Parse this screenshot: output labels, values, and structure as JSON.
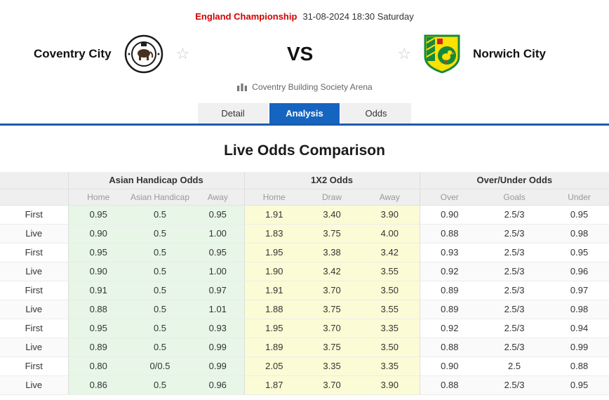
{
  "header": {
    "league": "England Championship",
    "datetime": "31-08-2024 18:30 Saturday",
    "home_team": "Coventry City",
    "away_team": "Norwich City",
    "vs": "VS",
    "venue": "Coventry Building Society Arena"
  },
  "icons": {
    "favorite_star": "☆",
    "home_logo": "coventry-city-crest",
    "away_logo": "norwich-city-crest",
    "venue_icon": "stadium-icon"
  },
  "colors": {
    "league_red": "#d10000",
    "accent_blue": "#1565c0",
    "tab_underline_blue": "#1b5cab",
    "asian_handicap_bg_green": "#e7f6e7",
    "x12_bg_yellow": "#fbfbd6",
    "header_bg_gray": "#efefef"
  },
  "tabs": [
    {
      "label": "Detail",
      "active": false
    },
    {
      "label": "Analysis",
      "active": true
    },
    {
      "label": "Odds",
      "active": false
    }
  ],
  "section_title": "Live Odds Comparison",
  "odds_table": {
    "groups": [
      "Asian Handicap Odds",
      "1X2 Odds",
      "Over/Under Odds"
    ],
    "subheaders": [
      [
        "Home",
        "Asian Handicap",
        "Away"
      ],
      [
        "Home",
        "Draw",
        "Away"
      ],
      [
        "Over",
        "Goals",
        "Under"
      ]
    ],
    "rows": [
      {
        "label": "First",
        "ah": [
          "0.95",
          "0.5",
          "0.95"
        ],
        "x12": [
          "1.91",
          "3.40",
          "3.90"
        ],
        "ou": [
          "0.90",
          "2.5/3",
          "0.95"
        ]
      },
      {
        "label": "Live",
        "ah": [
          "0.90",
          "0.5",
          "1.00"
        ],
        "x12": [
          "1.83",
          "3.75",
          "4.00"
        ],
        "ou": [
          "0.88",
          "2.5/3",
          "0.98"
        ]
      },
      {
        "label": "First",
        "ah": [
          "0.95",
          "0.5",
          "0.95"
        ],
        "x12": [
          "1.95",
          "3.38",
          "3.42"
        ],
        "ou": [
          "0.93",
          "2.5/3",
          "0.95"
        ]
      },
      {
        "label": "Live",
        "ah": [
          "0.90",
          "0.5",
          "1.00"
        ],
        "x12": [
          "1.90",
          "3.42",
          "3.55"
        ],
        "ou": [
          "0.92",
          "2.5/3",
          "0.96"
        ]
      },
      {
        "label": "First",
        "ah": [
          "0.91",
          "0.5",
          "0.97"
        ],
        "x12": [
          "1.91",
          "3.70",
          "3.50"
        ],
        "ou": [
          "0.89",
          "2.5/3",
          "0.97"
        ]
      },
      {
        "label": "Live",
        "ah": [
          "0.88",
          "0.5",
          "1.01"
        ],
        "x12": [
          "1.88",
          "3.75",
          "3.55"
        ],
        "ou": [
          "0.89",
          "2.5/3",
          "0.98"
        ]
      },
      {
        "label": "First",
        "ah": [
          "0.95",
          "0.5",
          "0.93"
        ],
        "x12": [
          "1.95",
          "3.70",
          "3.35"
        ],
        "ou": [
          "0.92",
          "2.5/3",
          "0.94"
        ]
      },
      {
        "label": "Live",
        "ah": [
          "0.89",
          "0.5",
          "0.99"
        ],
        "x12": [
          "1.89",
          "3.75",
          "3.50"
        ],
        "ou": [
          "0.88",
          "2.5/3",
          "0.99"
        ]
      },
      {
        "label": "First",
        "ah": [
          "0.80",
          "0/0.5",
          "0.99"
        ],
        "x12": [
          "2.05",
          "3.35",
          "3.35"
        ],
        "ou": [
          "0.90",
          "2.5",
          "0.88"
        ]
      },
      {
        "label": "Live",
        "ah": [
          "0.86",
          "0.5",
          "0.96"
        ],
        "x12": [
          "1.87",
          "3.70",
          "3.90"
        ],
        "ou": [
          "0.88",
          "2.5/3",
          "0.95"
        ]
      }
    ]
  }
}
